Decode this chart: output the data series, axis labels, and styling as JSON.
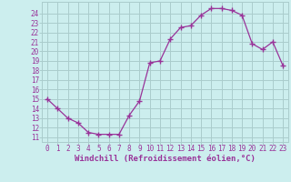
{
  "x": [
    0,
    1,
    2,
    3,
    4,
    5,
    6,
    7,
    8,
    9,
    10,
    11,
    12,
    13,
    14,
    15,
    16,
    17,
    18,
    19,
    20,
    21,
    22,
    23
  ],
  "y": [
    15,
    14,
    13,
    12.5,
    11.5,
    11.3,
    11.3,
    11.3,
    13.3,
    14.8,
    18.8,
    19.0,
    21.3,
    22.5,
    22.7,
    23.8,
    24.5,
    24.5,
    24.3,
    23.8,
    20.8,
    20.2,
    21.0,
    18.5
  ],
  "line_color": "#993399",
  "marker": "+",
  "bg_color": "#cceeee",
  "grid_color": "#aacccc",
  "xlabel": "Windchill (Refroidissement éolien,°C)",
  "ylabel_ticks": [
    11,
    12,
    13,
    14,
    15,
    16,
    17,
    18,
    19,
    20,
    21,
    22,
    23,
    24
  ],
  "xlim": [
    -0.5,
    23.5
  ],
  "ylim": [
    10.5,
    25.2
  ],
  "font_color": "#993399",
  "font_family": "monospace",
  "xlabel_fontsize": 6.5,
  "tick_fontsize": 5.5
}
